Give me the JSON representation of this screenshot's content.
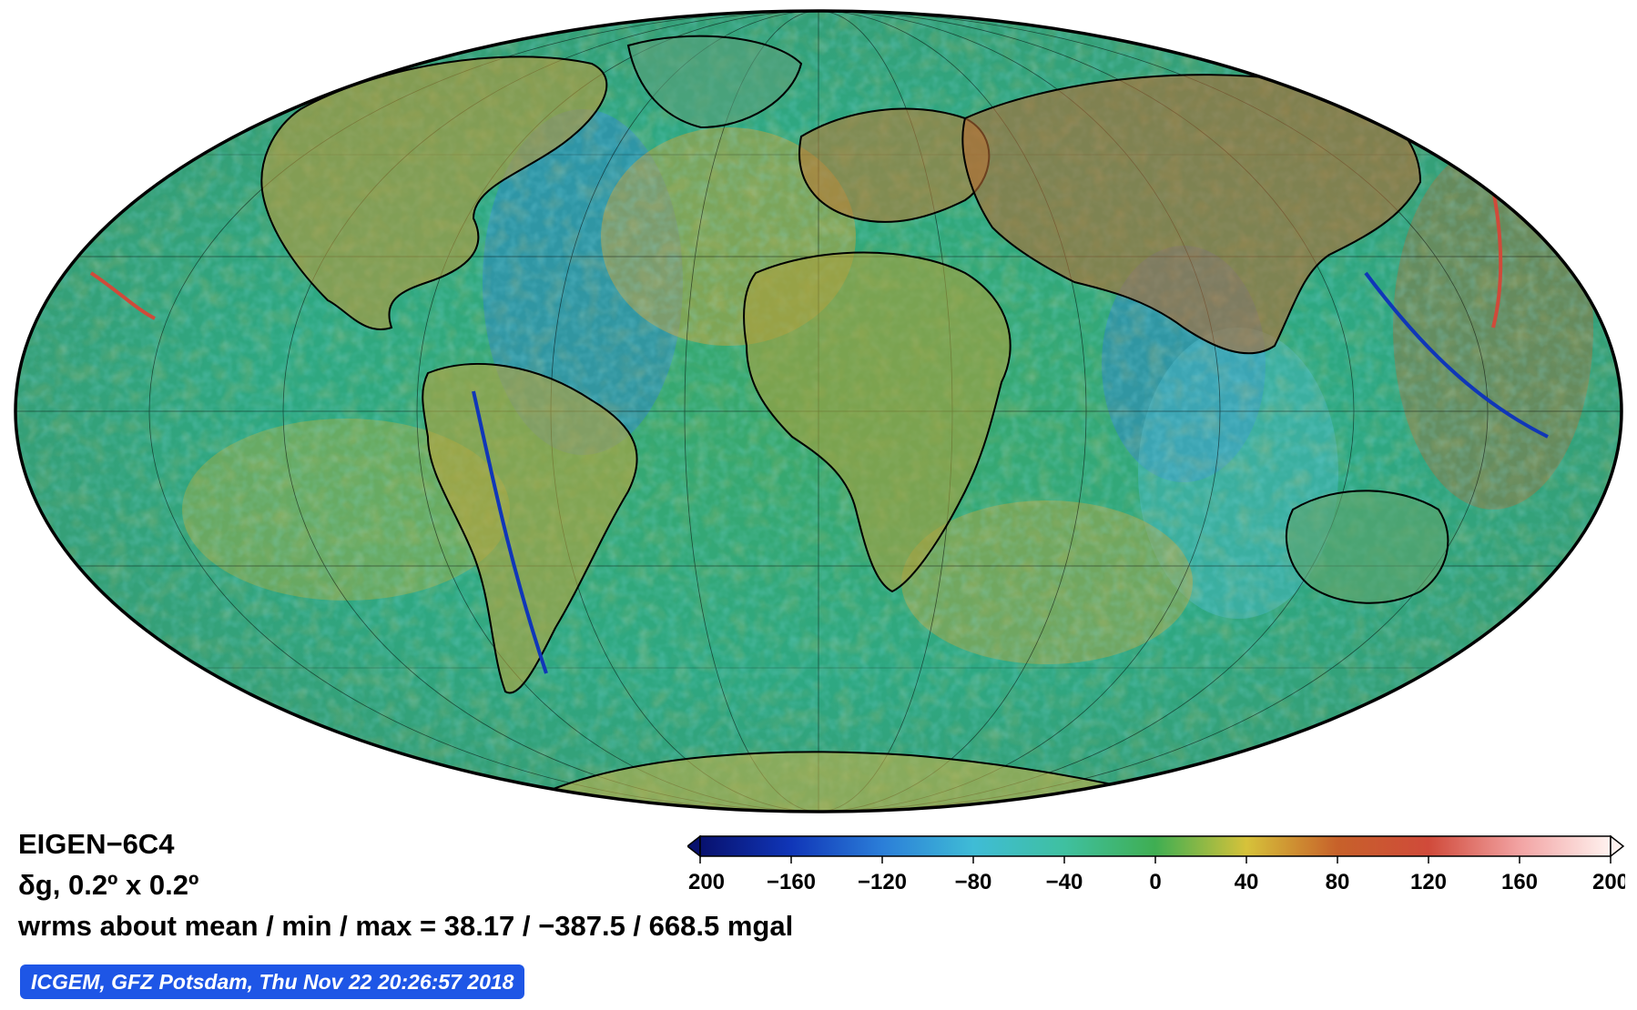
{
  "map": {
    "projection": "Mollweide",
    "colors": {
      "ocean_base": "#2ea882",
      "continent_outline": "#000000"
    },
    "continent_icons": [
      "north-america",
      "south-america",
      "europe",
      "africa",
      "asia",
      "australia",
      "antarctica",
      "greenland"
    ]
  },
  "legend": {
    "model_name": "EIGEN−6C4",
    "resolution": "δg, 0.2º x 0.2º",
    "stats": "wrms about mean / min / max = 38.17 / −387.5 / 668.5 mgal",
    "credit": "ICGEM, GFZ Potsdam, Thu Nov 22 20:26:57 2018"
  },
  "colorbar": {
    "min": -200,
    "max": 200,
    "ticks": [
      "−200",
      "−160",
      "−120",
      "−80",
      "−40",
      "0",
      "40",
      "80",
      "120",
      "160",
      "200"
    ],
    "stops": [
      {
        "value": -200,
        "color": "#08116e"
      },
      {
        "value": -160,
        "color": "#1036b8"
      },
      {
        "value": -120,
        "color": "#2b7ed8"
      },
      {
        "value": -80,
        "color": "#3fbcd6"
      },
      {
        "value": -40,
        "color": "#3fc0a0"
      },
      {
        "value": 0,
        "color": "#3fae52"
      },
      {
        "value": 40,
        "color": "#d6c23a"
      },
      {
        "value": 80,
        "color": "#c7612a"
      },
      {
        "value": 120,
        "color": "#d04a3a"
      },
      {
        "value": 160,
        "color": "#f2a3a3"
      },
      {
        "value": 200,
        "color": "#fff2ef"
      }
    ]
  }
}
